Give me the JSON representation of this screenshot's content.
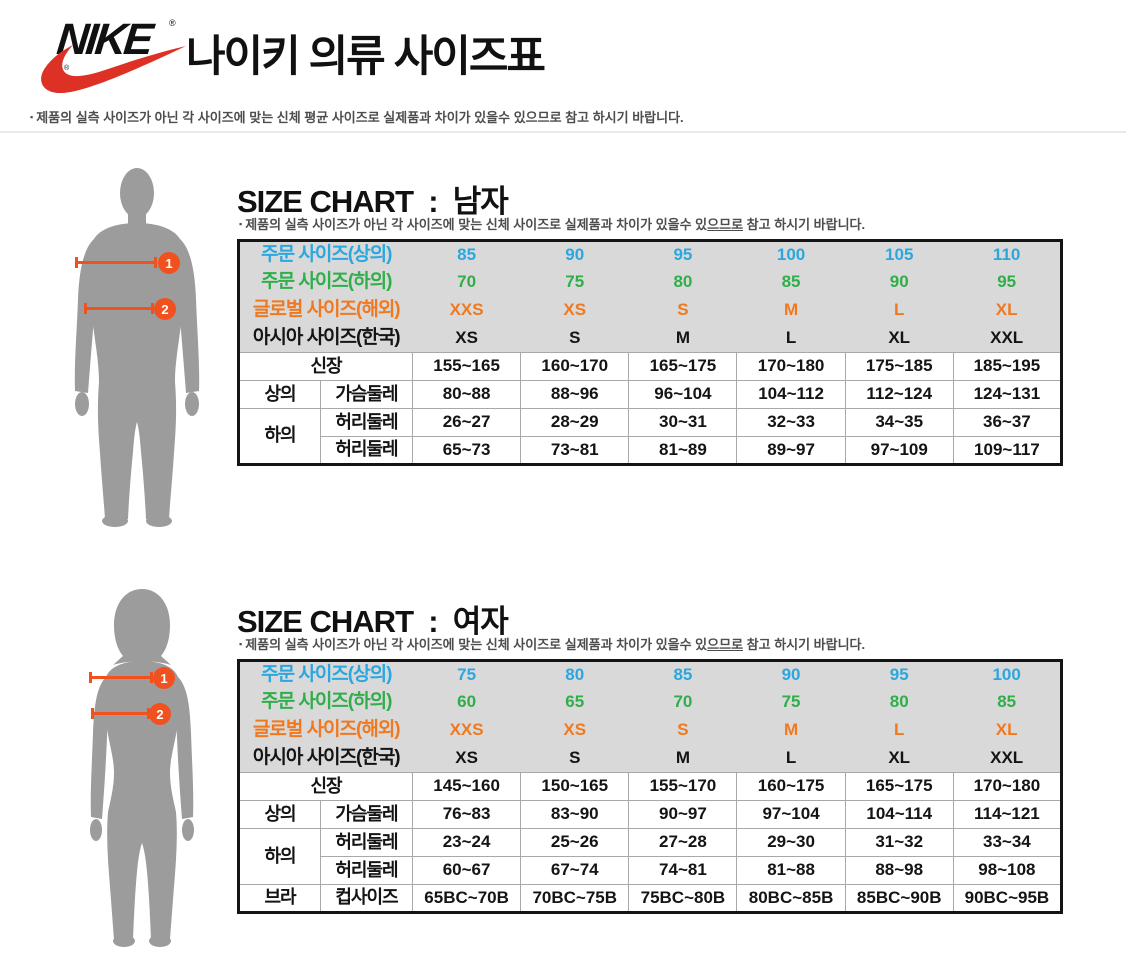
{
  "header": {
    "brand": "NIKE",
    "registered_mark": "®",
    "title": "나이키 의류 사이즈표",
    "note_bullet": "▪",
    "note": "제품의 실측 사이즈가 아닌 각 사이즈에 맞는 신체 평균 사이즈로 실제품과 차이가 있을수 있으므로 참고 하시기 바랍니다."
  },
  "colors": {
    "order_top_blue": "#2ba7df",
    "order_bottom_green": "#2fae4a",
    "global_orange": "#f0791f",
    "measure_orange": "#f0511e",
    "swoosh_red": "#dd3126",
    "header_row_gray": "#d9d9d9"
  },
  "sections": [
    {
      "id": "men",
      "heading": "SIZE CHART  :  남자",
      "note": {
        "bullet": "▪",
        "before": "제품의 실측 사이즈가 아닌 각 사이즈에 맞는 신체 사이즈로 실제품과 차이가 있을수 있",
        "underline": "으므로",
        "after": " 참고 하시기 바랍니다."
      },
      "measurements": [
        {
          "num": "1"
        },
        {
          "num": "2"
        }
      ],
      "table": {
        "header_rows": [
          {
            "label": "주문 사이즈(상의)",
            "color_key": "blue",
            "values": [
              "85",
              "90",
              "95",
              "100",
              "105",
              "110"
            ]
          },
          {
            "label": "주문 사이즈(하의)",
            "color_key": "green",
            "values": [
              "70",
              "75",
              "80",
              "85",
              "90",
              "95"
            ]
          },
          {
            "label": "글로벌 사이즈(해외)",
            "color_key": "orange",
            "values": [
              "XXS",
              "XS",
              "S",
              "M",
              "L",
              "XL"
            ]
          },
          {
            "label": "아시아 사이즈(한국)",
            "color_key": "black",
            "values": [
              "XS",
              "S",
              "M",
              "L",
              "XL",
              "XXL"
            ]
          }
        ],
        "body_rows": [
          {
            "cells": [
              {
                "text": "신장",
                "colspan": 2
              }
            ],
            "values": [
              "155~165",
              "160~170",
              "165~175",
              "170~180",
              "175~185",
              "185~195"
            ]
          },
          {
            "cells": [
              {
                "text": "상의"
              },
              {
                "text": "가슴둘레"
              }
            ],
            "values": [
              "80~88",
              "88~96",
              "96~104",
              "104~112",
              "112~124",
              "124~131"
            ]
          },
          {
            "cells": [
              {
                "text": "하의",
                "rowspan": 2
              },
              {
                "text": "허리둘레"
              }
            ],
            "values": [
              "26~27",
              "28~29",
              "30~31",
              "32~33",
              "34~35",
              "36~37"
            ]
          },
          {
            "cells": [
              {
                "text": "허리둘레"
              }
            ],
            "values": [
              "65~73",
              "73~81",
              "81~89",
              "89~97",
              "97~109",
              "109~117"
            ]
          }
        ]
      }
    },
    {
      "id": "women",
      "heading": "SIZE CHART  :  여자",
      "note": {
        "bullet": "▪",
        "before": "제품의 실측 사이즈가 아닌 각 사이즈에 맞는 신체 사이즈로 실제품과 차이가 있을수 있",
        "underline": "으므로",
        "after": " 참고 하시기 바랍니다."
      },
      "measurements": [
        {
          "num": "1"
        },
        {
          "num": "2"
        }
      ],
      "table": {
        "header_rows": [
          {
            "label": "주문 사이즈(상의)",
            "color_key": "blue",
            "values": [
              "75",
              "80",
              "85",
              "90",
              "95",
              "100"
            ]
          },
          {
            "label": "주문 사이즈(하의)",
            "color_key": "green",
            "values": [
              "60",
              "65",
              "70",
              "75",
              "80",
              "85"
            ]
          },
          {
            "label": "글로벌 사이즈(해외)",
            "color_key": "orange",
            "values": [
              "XXS",
              "XS",
              "S",
              "M",
              "L",
              "XL"
            ]
          },
          {
            "label": "아시아 사이즈(한국)",
            "color_key": "black",
            "values": [
              "XS",
              "S",
              "M",
              "L",
              "XL",
              "XXL"
            ]
          }
        ],
        "body_rows": [
          {
            "cells": [
              {
                "text": "신장",
                "colspan": 2
              }
            ],
            "values": [
              "145~160",
              "150~165",
              "155~170",
              "160~175",
              "165~175",
              "170~180"
            ]
          },
          {
            "cells": [
              {
                "text": "상의"
              },
              {
                "text": "가슴둘레"
              }
            ],
            "values": [
              "76~83",
              "83~90",
              "90~97",
              "97~104",
              "104~114",
              "114~121"
            ]
          },
          {
            "cells": [
              {
                "text": "하의",
                "rowspan": 2
              },
              {
                "text": "허리둘레"
              }
            ],
            "values": [
              "23~24",
              "25~26",
              "27~28",
              "29~30",
              "31~32",
              "33~34"
            ]
          },
          {
            "cells": [
              {
                "text": "허리둘레"
              }
            ],
            "values": [
              "60~67",
              "67~74",
              "74~81",
              "81~88",
              "88~98",
              "98~108"
            ]
          },
          {
            "cells": [
              {
                "text": "브라"
              },
              {
                "text": "컵사이즈"
              }
            ],
            "values": [
              "65BC~70B",
              "70BC~75B",
              "75BC~80B",
              "80BC~85B",
              "85BC~90B",
              "90BC~95B"
            ]
          }
        ]
      }
    }
  ]
}
